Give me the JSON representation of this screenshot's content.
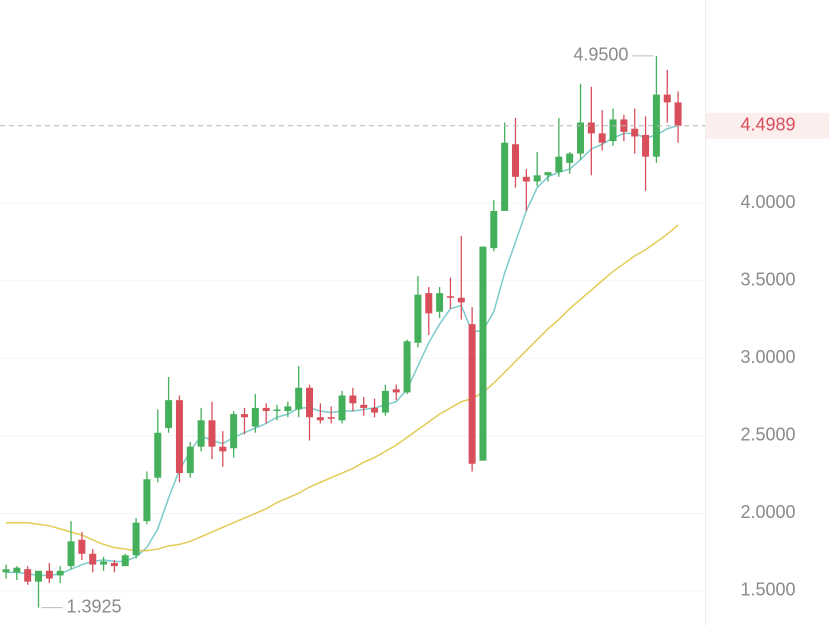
{
  "chart_data": {
    "type": "candlestick",
    "ylim": [
      1.274,
      5.31
    ],
    "yticks": [
      {
        "value": 1.5,
        "label": "1.5000"
      },
      {
        "value": 2,
        "label": "2.0000"
      },
      {
        "value": 2.5,
        "label": "2.5000"
      },
      {
        "value": 3,
        "label": "3.0000"
      },
      {
        "value": 3.5,
        "label": "3.5000"
      },
      {
        "value": 4,
        "label": "4.0000"
      }
    ],
    "grid": true,
    "up_color": "#45b05c",
    "down_color": "#d84f5b",
    "open": [
      1.62,
      1.62,
      1.64,
      1.56,
      1.63,
      1.6,
      1.66,
      1.83,
      1.74,
      1.67,
      1.68,
      1.66,
      1.73,
      1.95,
      2.23,
      2.55,
      2.73,
      2.26,
      2.43,
      2.6,
      2.43,
      2.42,
      2.64,
      2.56,
      2.68,
      2.66,
      2.66,
      2.67,
      2.81,
      2.62,
      2.62,
      2.6,
      2.76,
      2.7,
      2.68,
      2.65,
      2.8,
      2.78,
      3.1,
      3.42,
      3.3,
      3.4,
      3.39,
      3.22,
      2.34,
      3.71,
      3.95,
      4.38,
      4.17,
      4.14,
      4.18,
      4.2,
      4.26,
      4.32,
      4.52,
      4.45,
      4.4,
      4.54,
      4.48,
      4.44,
      4.3,
      4.7,
      4.65
    ],
    "high": [
      1.67,
      1.66,
      1.66,
      1.63,
      1.68,
      1.66,
      1.95,
      1.88,
      1.77,
      1.72,
      1.7,
      1.74,
      1.97,
      2.27,
      2.67,
      2.88,
      2.76,
      2.46,
      2.68,
      2.72,
      2.53,
      2.66,
      2.68,
      2.77,
      2.71,
      2.7,
      2.72,
      2.95,
      2.83,
      2.71,
      2.69,
      2.79,
      2.81,
      2.75,
      2.74,
      2.83,
      2.83,
      3.12,
      3.53,
      3.46,
      3.46,
      3.52,
      3.79,
      3.33,
      3.72,
      4.02,
      4.52,
      4.55,
      4.22,
      4.33,
      4.2,
      4.55,
      4.33,
      4.77,
      4.75,
      4.6,
      4.61,
      4.57,
      4.61,
      4.56,
      4.95,
      4.86,
      4.72
    ],
    "low": [
      1.58,
      1.57,
      1.54,
      1.3925,
      1.55,
      1.55,
      1.64,
      1.7,
      1.62,
      1.63,
      1.62,
      1.66,
      1.71,
      1.93,
      2.2,
      2.52,
      2.2,
      2.23,
      2.4,
      2.35,
      2.3,
      2.36,
      2.51,
      2.52,
      2.58,
      2.6,
      2.62,
      2.62,
      2.47,
      2.58,
      2.58,
      2.58,
      2.66,
      2.63,
      2.62,
      2.63,
      2.73,
      2.77,
      3.07,
      3.15,
      3.26,
      3.32,
      3.25,
      2.27,
      2.34,
      3.69,
      3.95,
      4.1,
      3.95,
      4.11,
      4.14,
      4.17,
      4.19,
      4.28,
      4.18,
      4.34,
      4.37,
      4.4,
      4.32,
      4.08,
      4.26,
      4.52,
      4.39
    ],
    "close": [
      1.64,
      1.65,
      1.56,
      1.63,
      1.58,
      1.63,
      1.82,
      1.74,
      1.67,
      1.69,
      1.66,
      1.73,
      1.94,
      2.22,
      2.52,
      2.73,
      2.26,
      2.43,
      2.6,
      2.43,
      2.4,
      2.64,
      2.62,
      2.68,
      2.66,
      2.67,
      2.69,
      2.81,
      2.62,
      2.6,
      2.61,
      2.76,
      2.71,
      2.68,
      2.65,
      2.79,
      2.78,
      3.11,
      3.41,
      3.29,
      3.42,
      3.39,
      3.36,
      2.32,
      3.72,
      3.95,
      4.39,
      4.17,
      4.14,
      4.18,
      4.2,
      4.3,
      4.32,
      4.52,
      4.45,
      4.39,
      4.54,
      4.46,
      4.43,
      4.3,
      4.7,
      4.65,
      4.4989
    ],
    "lines": [
      {
        "color": "#7ccbcb",
        "values": [
          1.62,
          1.62,
          1.61,
          1.6,
          1.6,
          1.61,
          1.64,
          1.67,
          1.69,
          1.7,
          1.69,
          1.69,
          1.72,
          1.78,
          1.9,
          2.1,
          2.28,
          2.4,
          2.5,
          2.47,
          2.45,
          2.49,
          2.52,
          2.55,
          2.58,
          2.62,
          2.64,
          2.68,
          2.68,
          2.66,
          2.65,
          2.66,
          2.66,
          2.67,
          2.68,
          2.7,
          2.72,
          2.8,
          2.95,
          3.1,
          3.22,
          3.32,
          3.34,
          3.17,
          3.18,
          3.3,
          3.55,
          3.75,
          3.95,
          4.1,
          4.17,
          4.2,
          4.22,
          4.28,
          4.35,
          4.38,
          4.42,
          4.45,
          4.45,
          4.42,
          4.44,
          4.48,
          4.5
        ]
      },
      {
        "color": "#e2cb55",
        "values": [
          1.94,
          1.94,
          1.94,
          1.93,
          1.92,
          1.9,
          1.88,
          1.86,
          1.83,
          1.8,
          1.78,
          1.77,
          1.76,
          1.76,
          1.77,
          1.79,
          1.8,
          1.82,
          1.85,
          1.88,
          1.91,
          1.94,
          1.97,
          2.0,
          2.03,
          2.07,
          2.1,
          2.13,
          2.17,
          2.2,
          2.23,
          2.26,
          2.29,
          2.33,
          2.36,
          2.4,
          2.44,
          2.49,
          2.54,
          2.59,
          2.64,
          2.68,
          2.72,
          2.74,
          2.78,
          2.84,
          2.91,
          2.98,
          3.05,
          3.12,
          3.19,
          3.25,
          3.32,
          3.38,
          3.44,
          3.5,
          3.56,
          3.61,
          3.66,
          3.7,
          3.75,
          3.8,
          3.86
        ]
      }
    ],
    "last_price": 4.4989,
    "max_label": {
      "value": 4.95,
      "label": "4.9500"
    },
    "min_label": {
      "value": 1.3925,
      "label": "1.3925"
    }
  }
}
